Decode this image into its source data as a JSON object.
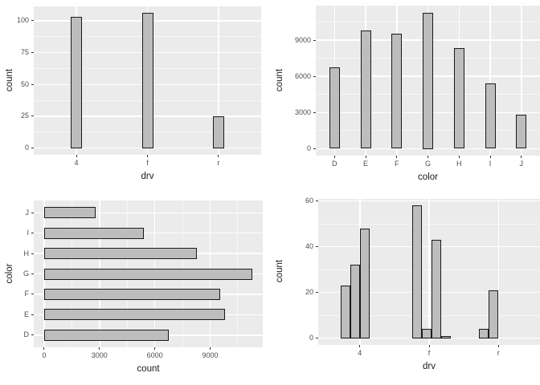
{
  "page": {
    "background": "#ffffff"
  },
  "colors": {
    "panel_background": "#ebebeb",
    "gridline": "#ffffff",
    "bar_fill": "#bdbdbd",
    "bar_stroke": "#1a1a1a",
    "tick_label": "#4d4d4d",
    "axis_title": "#1a1a1a"
  },
  "chart_data": [
    {
      "type": "bar",
      "orientation": "vertical",
      "title": "",
      "xlabel": "drv",
      "ylabel": "count",
      "categories": [
        "4",
        "f",
        "r"
      ],
      "values": [
        103,
        106,
        25
      ],
      "yticks": [
        0,
        25,
        50,
        75,
        100
      ],
      "ylim": [
        0,
        111
      ],
      "grid": true,
      "legend": "none"
    },
    {
      "type": "bar",
      "orientation": "vertical",
      "title": "",
      "xlabel": "color",
      "ylabel": "count",
      "categories": [
        "D",
        "E",
        "F",
        "G",
        "H",
        "I",
        "J"
      ],
      "values": [
        6775,
        9797,
        9542,
        11292,
        8304,
        5422,
        2808
      ],
      "yticks": [
        0,
        3000,
        6000,
        9000
      ],
      "ylim": [
        0,
        11860
      ],
      "grid": true,
      "legend": "none"
    },
    {
      "type": "bar",
      "orientation": "horizontal",
      "title": "",
      "xlabel": "count",
      "ylabel": "color",
      "categories": [
        "D",
        "E",
        "F",
        "G",
        "H",
        "I",
        "J"
      ],
      "values": [
        6775,
        9797,
        9542,
        11292,
        8304,
        5422,
        2808
      ],
      "xticks": [
        0,
        3000,
        6000,
        9000
      ],
      "xlim": [
        0,
        11860
      ],
      "grid": true,
      "legend": "none"
    },
    {
      "type": "bar",
      "orientation": "vertical",
      "variant": "dodge",
      "title": "",
      "xlabel": "drv",
      "ylabel": "count",
      "categories": [
        "4",
        "f",
        "r"
      ],
      "groups": [
        {
          "category": "4",
          "values": [
            23,
            32,
            48
          ]
        },
        {
          "category": "f",
          "values": [
            58,
            4,
            43,
            1
          ]
        },
        {
          "category": "r",
          "values": [
            4,
            21
          ]
        }
      ],
      "yticks": [
        0,
        20,
        40,
        60
      ],
      "ylim": [
        0,
        61
      ],
      "grid": true,
      "legend": "none"
    }
  ]
}
